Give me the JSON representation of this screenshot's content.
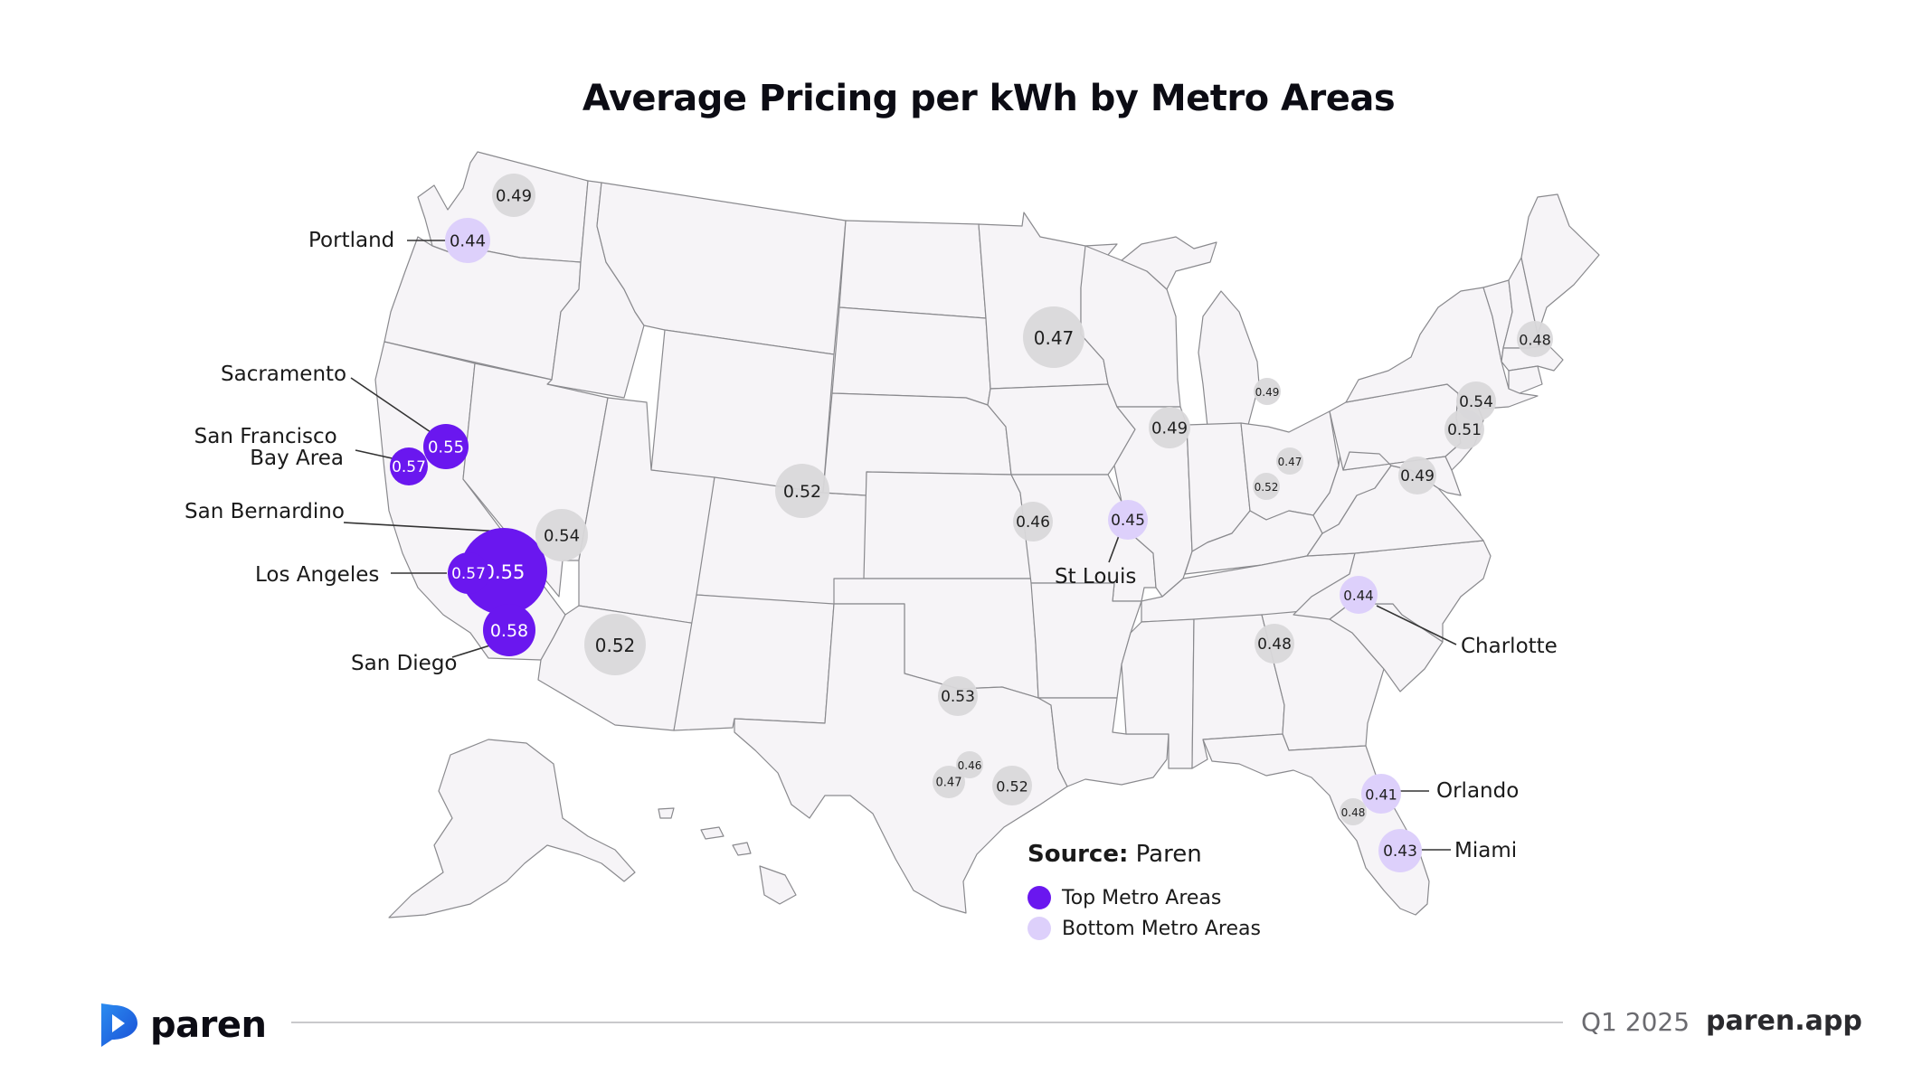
{
  "title": "Average Pricing per kWh by Metro Areas",
  "colors": {
    "top": "#6a17ef",
    "bottom": "#ddd0fb",
    "neutral": "#d9d8da",
    "top_text": "#ffffff",
    "bubble_text": "#1f1f1f"
  },
  "bubbles": [
    {
      "id": "seattle",
      "value": "0.49",
      "type": "neutral"
    },
    {
      "id": "portland",
      "value": "0.44",
      "type": "bottom",
      "label": "Portland"
    },
    {
      "id": "sacramento",
      "value": "0.55",
      "type": "top",
      "label": "Sacramento"
    },
    {
      "id": "sf-bay",
      "value": "0.57",
      "type": "top",
      "label": "San Francisco Bay Area"
    },
    {
      "id": "san-bernardino",
      "value": "0.55",
      "type": "top",
      "label": "San Bernardino"
    },
    {
      "id": "los-angeles",
      "value": "0.57",
      "type": "top",
      "label": "Los Angeles"
    },
    {
      "id": "san-diego",
      "value": "0.58",
      "type": "top",
      "label": "San Diego"
    },
    {
      "id": "las-vegas",
      "value": "0.54",
      "type": "neutral"
    },
    {
      "id": "phoenix",
      "value": "0.52",
      "type": "neutral"
    },
    {
      "id": "denver",
      "value": "0.52",
      "type": "neutral"
    },
    {
      "id": "minneapolis",
      "value": "0.47",
      "type": "neutral"
    },
    {
      "id": "kansas-city",
      "value": "0.46",
      "type": "neutral"
    },
    {
      "id": "st-louis",
      "value": "0.45",
      "type": "bottom",
      "label": "St Louis"
    },
    {
      "id": "chicago",
      "value": "0.49",
      "type": "neutral"
    },
    {
      "id": "detroit",
      "value": "0.49",
      "type": "neutral"
    },
    {
      "id": "columbus",
      "value": "0.47",
      "type": "neutral"
    },
    {
      "id": "cincinnati",
      "value": "0.52",
      "type": "neutral"
    },
    {
      "id": "dallas",
      "value": "0.53",
      "type": "neutral"
    },
    {
      "id": "austin",
      "value": "0.46",
      "type": "neutral"
    },
    {
      "id": "san-antonio",
      "value": "0.47",
      "type": "neutral"
    },
    {
      "id": "houston",
      "value": "0.52",
      "type": "neutral"
    },
    {
      "id": "atlanta",
      "value": "0.48",
      "type": "neutral"
    },
    {
      "id": "charlotte",
      "value": "0.44",
      "type": "bottom",
      "label": "Charlotte"
    },
    {
      "id": "washington",
      "value": "0.49",
      "type": "neutral"
    },
    {
      "id": "new-york",
      "value": "0.54",
      "type": "neutral"
    },
    {
      "id": "philadelphia",
      "value": "0.51",
      "type": "neutral"
    },
    {
      "id": "boston",
      "value": "0.48",
      "type": "neutral"
    },
    {
      "id": "tampa",
      "value": "0.48",
      "type": "neutral"
    },
    {
      "id": "orlando",
      "value": "0.41",
      "type": "bottom",
      "label": "Orlando"
    },
    {
      "id": "miami",
      "value": "0.43",
      "type": "bottom",
      "label": "Miami"
    }
  ],
  "legend": {
    "source_label": "Source:",
    "source_value": "Paren",
    "top_label": "Top Metro Areas",
    "bottom_label": "Bottom Metro Areas"
  },
  "footer": {
    "brand": "paren",
    "quarter": "Q1 2025",
    "site": "paren.app"
  }
}
